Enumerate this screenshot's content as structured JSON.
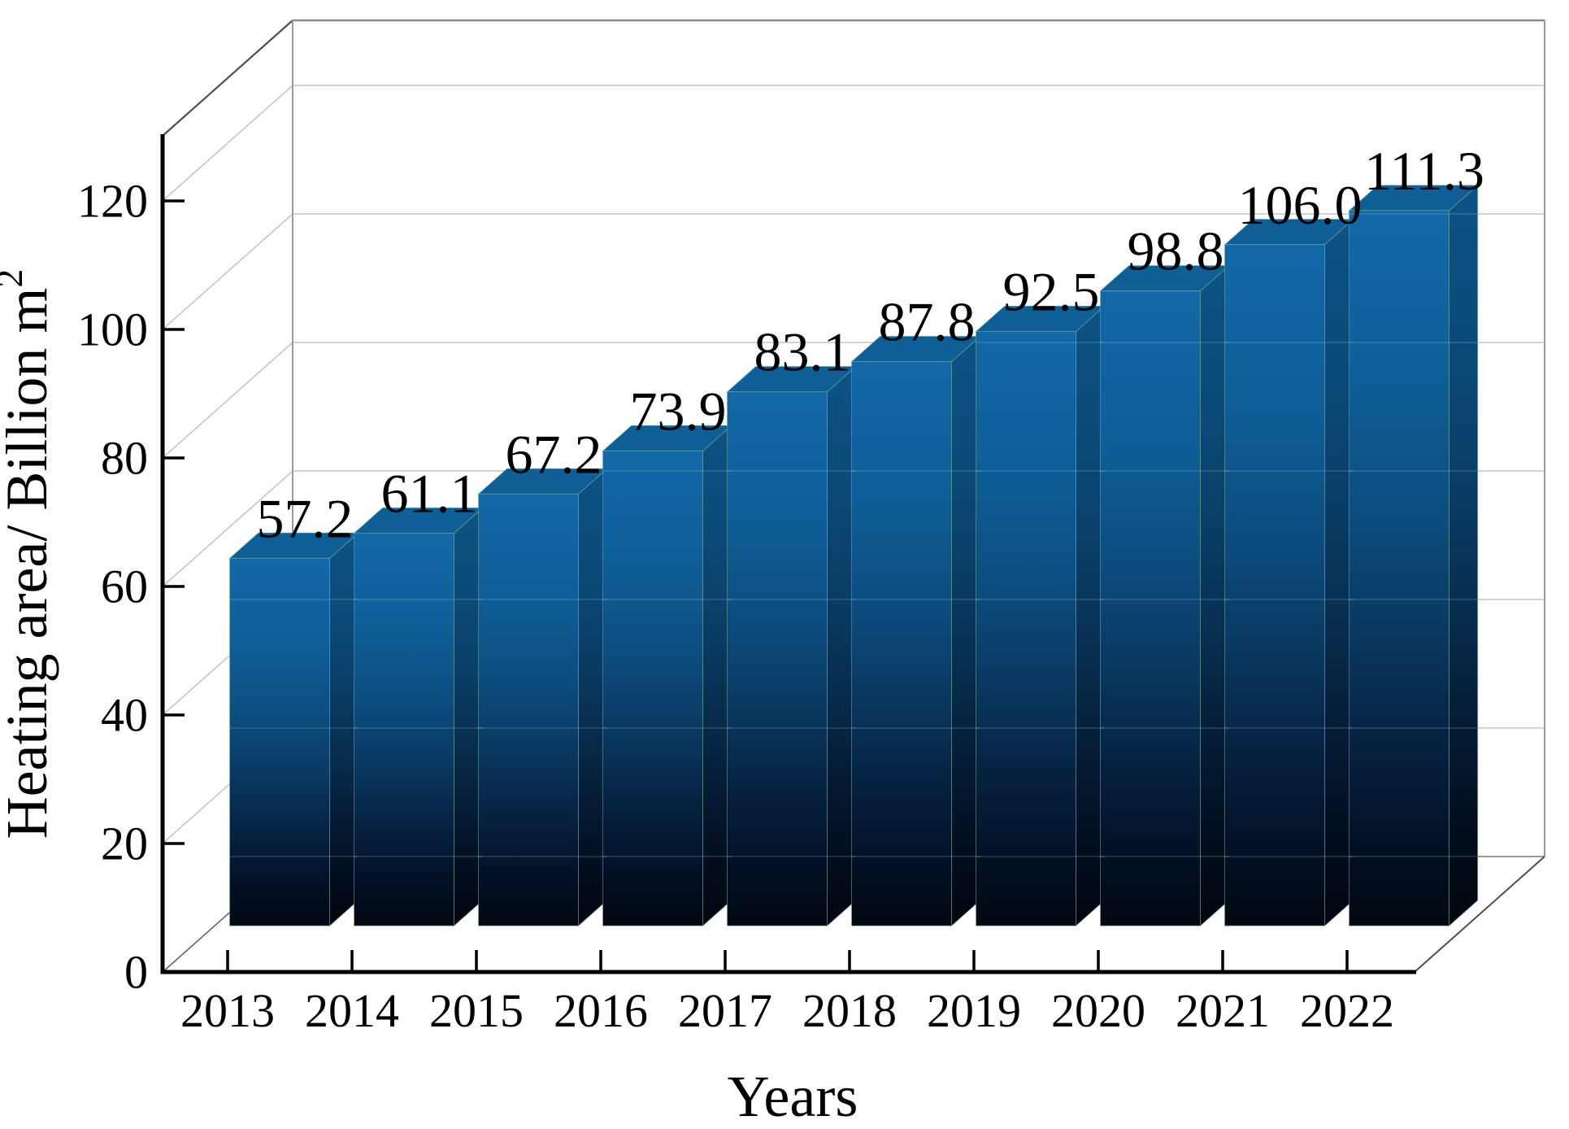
{
  "chart_data": {
    "type": "bar",
    "projection": "3d-column",
    "title": "",
    "xlabel": "Years",
    "ylabel": "Heating area/ Billion m",
    "ylabel_superscript": "2",
    "categories": [
      "2013",
      "2014",
      "2015",
      "2016",
      "2017",
      "2018",
      "2019",
      "2020",
      "2021",
      "2022"
    ],
    "values": [
      57.2,
      61.1,
      67.2,
      73.9,
      83.1,
      87.8,
      92.5,
      98.8,
      106.0,
      111.3
    ],
    "value_labels": [
      "57.2",
      "61.1",
      "67.2",
      "73.9",
      "83.1",
      "87.8",
      "92.5",
      "98.8",
      "106.0",
      "111.3"
    ],
    "yticks": [
      0,
      20,
      40,
      60,
      80,
      100,
      120
    ],
    "ylim": [
      0,
      130
    ],
    "grid": true,
    "legend_position": "none",
    "colors": {
      "background": "#ffffff",
      "axis": "#000000",
      "text": "#000000",
      "grid_line": "#c6c6c6",
      "wall_edge": "#9a9a9a",
      "wall_edge_dark": "#4f4f4f",
      "floor_edge": "#666666",
      "bar_top_face": "#0f5e95",
      "bar_face_edge": "rgba(120,175,155,0.5)",
      "through_grid": "rgba(185,210,220,0.22)",
      "front_stops": [
        [
          0,
          "#1368a8"
        ],
        [
          0.22,
          "#0f5f99"
        ],
        [
          0.42,
          "#0c4e81"
        ],
        [
          0.6,
          "#09375f"
        ],
        [
          0.75,
          "#062140"
        ],
        [
          0.88,
          "#031127"
        ],
        [
          1,
          "#020812"
        ]
      ],
      "side_stops": [
        [
          0,
          "#0d5384"
        ],
        [
          0.22,
          "#0b4a78"
        ],
        [
          0.42,
          "#093c64"
        ],
        [
          0.6,
          "#072a49"
        ],
        [
          0.75,
          "#041931"
        ],
        [
          0.88,
          "#020d1d"
        ],
        [
          1,
          "#01060e"
        ]
      ]
    }
  }
}
